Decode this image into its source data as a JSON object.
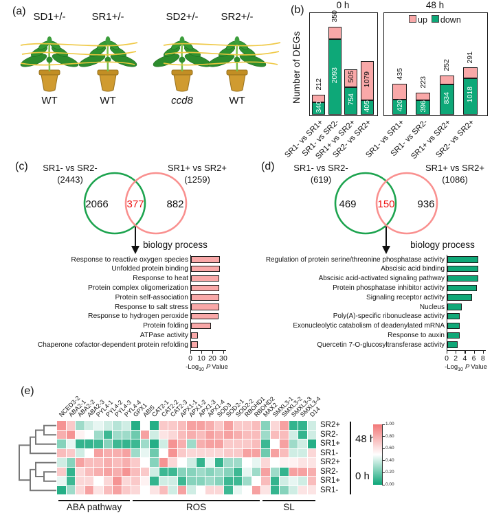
{
  "panels": {
    "a": {
      "label": "(a)",
      "plants": [
        {
          "top_label": "SD1+/-",
          "bottom_label": "WT"
        },
        {
          "top_label": "SR1+/-",
          "bottom_label": "WT"
        },
        {
          "top_label": "SD2+/-",
          "bottom_label": "ccd8"
        },
        {
          "top_label": "SR2+/-",
          "bottom_label": "WT"
        }
      ]
    },
    "b": {
      "label": "(b)"
    },
    "c": {
      "label": "(c)"
    },
    "d": {
      "label": "(d)"
    },
    "e": {
      "label": "(e)"
    }
  },
  "colors": {
    "up_pink": "#F9A8A8",
    "down_green": "#0EA878",
    "venn_green_stroke": "#1CA34E",
    "venn_pink_stroke": "#F9908F",
    "overlap_red": "#EE1111",
    "go_pink": "#F9A8A8",
    "go_green": "#10A878",
    "heat_high": "#F27878",
    "heat_low": "#0DA678"
  },
  "chart_data": [
    {
      "id": "deg_stacked_bars",
      "type": "bar",
      "ylabel": "Number of DEGs",
      "legend": [
        {
          "label": "up",
          "color": "#F9A8A8"
        },
        {
          "label": "down",
          "color": "#0EA878"
        }
      ],
      "groups": [
        {
          "title": "0 h",
          "categories": [
            "SR1- vs SR1+",
            "SR1- vs SR2-",
            "SR1+ vs SR2+",
            "SR2- vs SR2+"
          ],
          "series": [
            {
              "name": "up",
              "values": [
                212,
                350,
                505,
                1079
              ]
            },
            {
              "name": "down",
              "values": [
                340,
                2093,
                754,
                405
              ]
            }
          ]
        },
        {
          "title": "48 h",
          "categories": [
            "SR1- vs SR1+",
            "SR1- vs SR2-",
            "SR1+ vs SR2+",
            "SR2- vs SR2+"
          ],
          "series": [
            {
              "name": "up",
              "values": [
                435,
                223,
                252,
                291
              ]
            },
            {
              "name": "down",
              "values": [
                420,
                396,
                834,
                1018
              ]
            }
          ]
        }
      ]
    },
    {
      "id": "venn_panel_c",
      "type": "venn",
      "left": {
        "label": "SR1- vs SR2-",
        "total": "(2443)",
        "only": "2066"
      },
      "right": {
        "label": "SR1+ vs SR2+",
        "total": "(1259)",
        "only": "882"
      },
      "overlap": "377"
    },
    {
      "id": "go_panel_c",
      "type": "bar",
      "title": "biology process",
      "xlabel_pre": "-Log",
      "xlabel_sub": "10",
      "xlabel_pvar": "P",
      "xlabel_post": "Value",
      "categories": [
        "Response to reactive oxygen species",
        "Unfolded protein binding",
        "Response to heat",
        "Protein complex oligomerization",
        "Protein self-association",
        "Response to salt stress",
        "Response to hydrogen peroxide",
        "Protein folding",
        "ATPase activity",
        "Chaperone cofactor-dependent protein refolding"
      ],
      "values": [
        26,
        26,
        25.5,
        25.5,
        25.5,
        25.5,
        25,
        18,
        6.5,
        6
      ],
      "xlim": [
        0,
        30
      ],
      "ticks": [
        0,
        10,
        20,
        30
      ],
      "bar_color": "#F9A8A8"
    },
    {
      "id": "venn_panel_d",
      "type": "venn",
      "left": {
        "label": "SR1- vs SR2-",
        "total": "(619)",
        "only": "469"
      },
      "right": {
        "label": "SR1+ vs SR2+",
        "total": "(1086)",
        "only": "936"
      },
      "overlap": "150"
    },
    {
      "id": "go_panel_d",
      "type": "bar",
      "title": "biology process",
      "xlabel_pre": "-Log",
      "xlabel_sub": "10",
      "xlabel_pvar": "P",
      "xlabel_post": "Value",
      "categories": [
        "Regulation of protein serine/threonine phosphatase activity",
        "Abscisic acid binding",
        "Abscisic acid-activated signaling pathway",
        "Protein phosphatase inhibitor activity",
        "Signaling receptor activity",
        "Nucleus",
        "Poly(A)-specific ribonuclease activity",
        "Exonucleolytic catabolism of deadenylated mRNA",
        "Response to auxin",
        "Quercetin 7-O-glucosyltransferase activity"
      ],
      "values": [
        6.8,
        6.8,
        6.8,
        6.5,
        5.5,
        3.2,
        2.7,
        2.7,
        2.7,
        2.3
      ],
      "xlim": [
        0,
        8
      ],
      "ticks": [
        0,
        2,
        4,
        6,
        8
      ],
      "bar_color": "#10A878"
    },
    {
      "id": "expression_heatmap",
      "type": "heatmap",
      "columns": [
        "NCED3-2",
        "ABA2-1",
        "ABA2-2",
        "ABA2-3",
        "PYL4-1",
        "PYL4-2",
        "PYL4-3",
        "PYL4-4",
        "GPX1",
        "ABI5",
        "CAT2-1",
        "CAT2-2",
        "CAT2-3",
        "APX1-1",
        "APX1-2",
        "APX1-3",
        "APX1-4",
        "SOD3",
        "SOD2-1",
        "SOD2-2",
        "RBOHD1",
        "RBOHD2",
        "MAX2",
        "SMXL3-1",
        "SMXL3-2",
        "SMXL3-3",
        "SMXL3-4",
        "D14"
      ],
      "rows": [
        "SR2+",
        "SR2-",
        "SR1+",
        "SR1-",
        "SR2+",
        "SR2-",
        "SR1+",
        "SR1-"
      ],
      "row_groups": [
        {
          "label": "48 h",
          "rows": [
            0,
            3
          ]
        },
        {
          "label": "0 h",
          "rows": [
            4,
            7
          ]
        }
      ],
      "col_groups": [
        {
          "label": "ABA pathway",
          "cols": [
            0,
            7
          ]
        },
        {
          "label": "ROS",
          "cols": [
            8,
            21
          ]
        },
        {
          "label": "SL",
          "cols": [
            22,
            27
          ]
        }
      ],
      "values": [
        [
          0.9,
          0.7,
          0.3,
          0.4,
          0.45,
          0.4,
          0.35,
          0.4,
          0.05,
          0.5,
          0.05,
          0.7,
          0.7,
          0.75,
          0.85,
          0.85,
          0.8,
          0.7,
          0.85,
          0.7,
          0.7,
          0.75,
          0.25,
          0.65,
          0.85,
          0.08,
          0.08,
          0.4
        ],
        [
          0.8,
          0.9,
          0.55,
          0.5,
          0.3,
          0.1,
          0.3,
          0.3,
          0.2,
          0.85,
          0.4,
          0.6,
          0.65,
          0.75,
          0.8,
          0.75,
          0.85,
          0.8,
          0.85,
          0.8,
          0.75,
          0.75,
          0.3,
          0.75,
          0.75,
          0.4,
          0.08,
          0.4
        ],
        [
          0.25,
          0.45,
          0.08,
          0.08,
          0.1,
          0.25,
          0.1,
          0.08,
          0.1,
          0.3,
          0.05,
          0.4,
          0.9,
          0.8,
          0.3,
          0.8,
          0.85,
          0.85,
          0.7,
          0.7,
          0.7,
          0.75,
          0.1,
          0.5,
          0.85,
          0.3,
          0.4,
          0.05
        ],
        [
          0.75,
          0.7,
          0.4,
          0.5,
          0.85,
          0.8,
          0.8,
          0.85,
          0.3,
          0.45,
          0.2,
          0.5,
          0.9,
          0.7,
          0.65,
          0.65,
          0.65,
          0.65,
          0.7,
          0.7,
          0.85,
          0.85,
          0.2,
          0.85,
          0.75,
          0.4,
          0.4,
          0.65
        ],
        [
          0.4,
          0.25,
          0.85,
          0.75,
          0.75,
          0.8,
          0.75,
          0.8,
          0.7,
          0.5,
          0.25,
          0.9,
          0.65,
          0.5,
          0.4,
          0.08,
          0.45,
          0.08,
          0.3,
          0.3,
          0.5,
          0.45,
          0.65,
          0.5,
          0.55,
          0.55,
          0.6,
          0.6
        ],
        [
          0.7,
          0.08,
          0.65,
          0.75,
          0.8,
          0.85,
          0.8,
          0.9,
          0.75,
          0.7,
          0.4,
          0.1,
          0.1,
          0.25,
          0.25,
          0.3,
          0.25,
          0.3,
          0.25,
          0.1,
          0.45,
          0.3,
          0.85,
          0.3,
          0.08,
          0.85,
          0.85,
          0.8
        ],
        [
          0.45,
          0.1,
          0.65,
          0.65,
          0.5,
          0.65,
          0.9,
          0.65,
          0.7,
          0.55,
          0.08,
          0.4,
          0.4,
          0.1,
          0.25,
          0.25,
          0.3,
          0.25,
          0.1,
          0.1,
          0.3,
          0.5,
          0.75,
          0.08,
          0.4,
          0.45,
          0.4,
          0.75
        ],
        [
          0.05,
          0.3,
          0.65,
          0.85,
          0.6,
          0.75,
          0.85,
          0.7,
          0.65,
          0.5,
          0.6,
          0.75,
          0.4,
          0.85,
          0.4,
          0.5,
          0.65,
          0.65,
          0.1,
          0.45,
          0.5,
          0.85,
          0.6,
          0.08,
          0.25,
          0.4,
          0.6,
          0.6
        ]
      ],
      "colorbar": {
        "ticks": [
          "1.00",
          "0.80",
          "0.60",
          "0.40",
          "0.20",
          "0.00"
        ]
      }
    }
  ]
}
